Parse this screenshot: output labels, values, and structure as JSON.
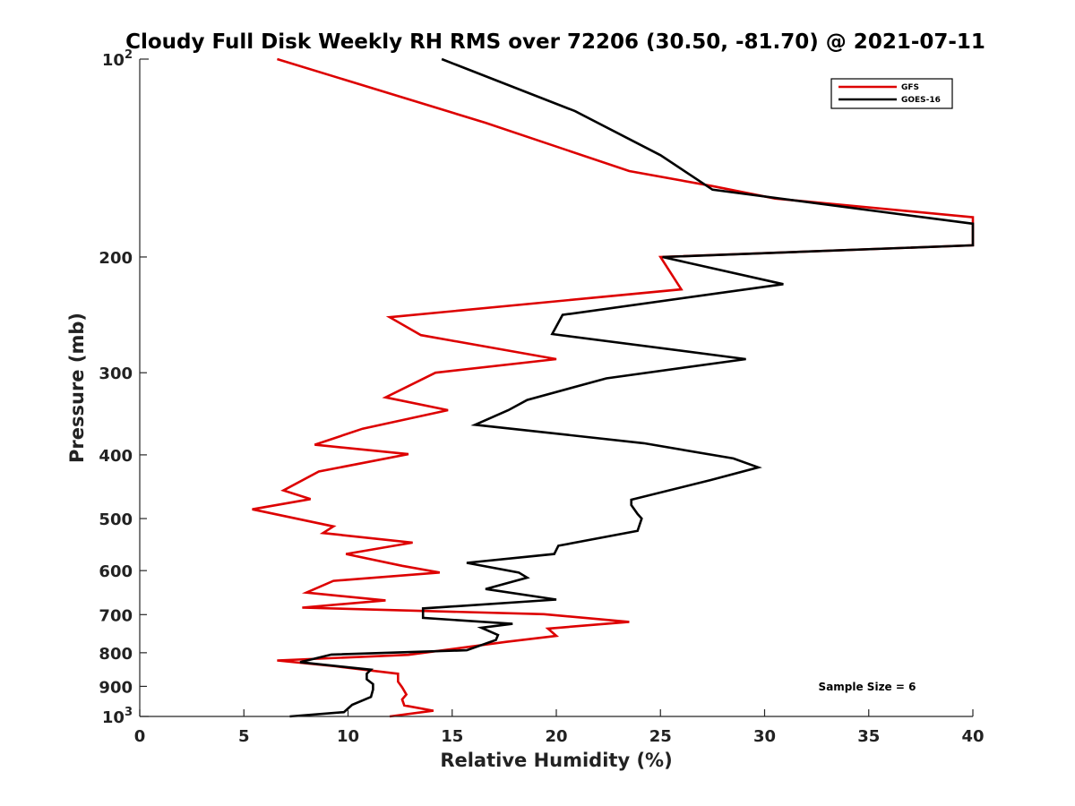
{
  "chart_data": {
    "type": "line",
    "title": "Cloudy Full Disk Weekly RH RMS over 72206 (30.50, -81.70) @ 2021-07-11",
    "xlabel": "Relative Humidity (%)",
    "ylabel": "Pressure (mb)",
    "xlim": [
      0,
      40
    ],
    "ylim": [
      100,
      1000
    ],
    "yscale": "log",
    "yreversed": true,
    "x_ticks": [
      0,
      5,
      10,
      15,
      20,
      25,
      30,
      35,
      40
    ],
    "x_tick_labels": [
      "0",
      "5",
      "10",
      "15",
      "20",
      "25",
      "30",
      "35",
      "40"
    ],
    "y_ticks": [
      200,
      300,
      400,
      500,
      600,
      700,
      800,
      900
    ],
    "y_tick_labels": [
      "200",
      "300",
      "400",
      "500",
      "600",
      "700",
      "800",
      "900"
    ],
    "y_decade_ticks": [
      {
        "value": 100,
        "base": "10",
        "exp": "2"
      },
      {
        "value": 1000,
        "base": "10",
        "exp": "3"
      }
    ],
    "legend_position": "top-right",
    "annotation": "Sample Size = 6",
    "series": [
      {
        "name": "GFS",
        "color": "#dd0000",
        "points": [
          [
            6.6,
            100
          ],
          [
            16.6,
            125
          ],
          [
            23.5,
            148
          ],
          [
            27.5,
            156
          ],
          [
            30.5,
            163
          ],
          [
            40,
            174
          ],
          [
            40,
            192
          ],
          [
            25,
            200
          ],
          [
            26,
            224
          ],
          [
            12,
            247
          ],
          [
            13.5,
            263
          ],
          [
            20,
            286
          ],
          [
            14.2,
            300
          ],
          [
            11.8,
            327
          ],
          [
            14.8,
            342
          ],
          [
            10.7,
            365
          ],
          [
            8.4,
            386
          ],
          [
            12.9,
            399
          ],
          [
            8.6,
            424
          ],
          [
            6.9,
            453
          ],
          [
            8.2,
            467
          ],
          [
            5.4,
            484
          ],
          [
            9.3,
            514
          ],
          [
            8.8,
            526
          ],
          [
            13.1,
            544
          ],
          [
            9.9,
            566
          ],
          [
            12.6,
            590
          ],
          [
            14.4,
            604
          ],
          [
            9.3,
            622
          ],
          [
            8,
            648
          ],
          [
            11.8,
            666
          ],
          [
            7.8,
            683
          ],
          [
            19.4,
            699
          ],
          [
            23.5,
            718
          ],
          [
            19.6,
            735
          ],
          [
            20,
            754
          ],
          [
            17.6,
            770
          ],
          [
            12.9,
            806
          ],
          [
            6.6,
            822
          ],
          [
            9.4,
            839
          ],
          [
            12.4,
            861
          ],
          [
            12.4,
            885
          ],
          [
            12.6,
            903
          ],
          [
            12.8,
            926
          ],
          [
            12.6,
            942
          ],
          [
            12.7,
            962
          ],
          [
            14.1,
            980
          ],
          [
            12,
            1000
          ]
        ]
      },
      {
        "name": "GOES-16",
        "color": "#000000",
        "points": [
          [
            14.5,
            100
          ],
          [
            20.9,
            120
          ],
          [
            25,
            140
          ],
          [
            27.5,
            158
          ],
          [
            40,
            178
          ],
          [
            40,
            192
          ],
          [
            25.1,
            200
          ],
          [
            30.9,
            220
          ],
          [
            20.3,
            245
          ],
          [
            19.8,
            262
          ],
          [
            29.1,
            286
          ],
          [
            22.4,
            306
          ],
          [
            18.6,
            330
          ],
          [
            17.7,
            342
          ],
          [
            16.1,
            360
          ],
          [
            24.2,
            384
          ],
          [
            28.5,
            405
          ],
          [
            29.7,
            418
          ],
          [
            27.4,
            437
          ],
          [
            23.6,
            468
          ],
          [
            23.6,
            477
          ],
          [
            23.9,
            492
          ],
          [
            24.1,
            500
          ],
          [
            23.9,
            522
          ],
          [
            20.1,
            550
          ],
          [
            19.9,
            566
          ],
          [
            15.7,
            584
          ],
          [
            18.2,
            604
          ],
          [
            18.6,
            615
          ],
          [
            16.6,
            640
          ],
          [
            20,
            664
          ],
          [
            13.6,
            685
          ],
          [
            13.6,
            708
          ],
          [
            17.9,
            723
          ],
          [
            16.4,
            733
          ],
          [
            17.2,
            752
          ],
          [
            17.1,
            765
          ],
          [
            15.7,
            793
          ],
          [
            9.2,
            805
          ],
          [
            7.7,
            827
          ],
          [
            11.1,
            849
          ],
          [
            10.9,
            861
          ],
          [
            10.9,
            878
          ],
          [
            11.2,
            893
          ],
          [
            11.2,
            910
          ],
          [
            11.1,
            934
          ],
          [
            10.2,
            960
          ],
          [
            9.8,
            985
          ],
          [
            7.2,
            1000
          ]
        ]
      }
    ]
  }
}
